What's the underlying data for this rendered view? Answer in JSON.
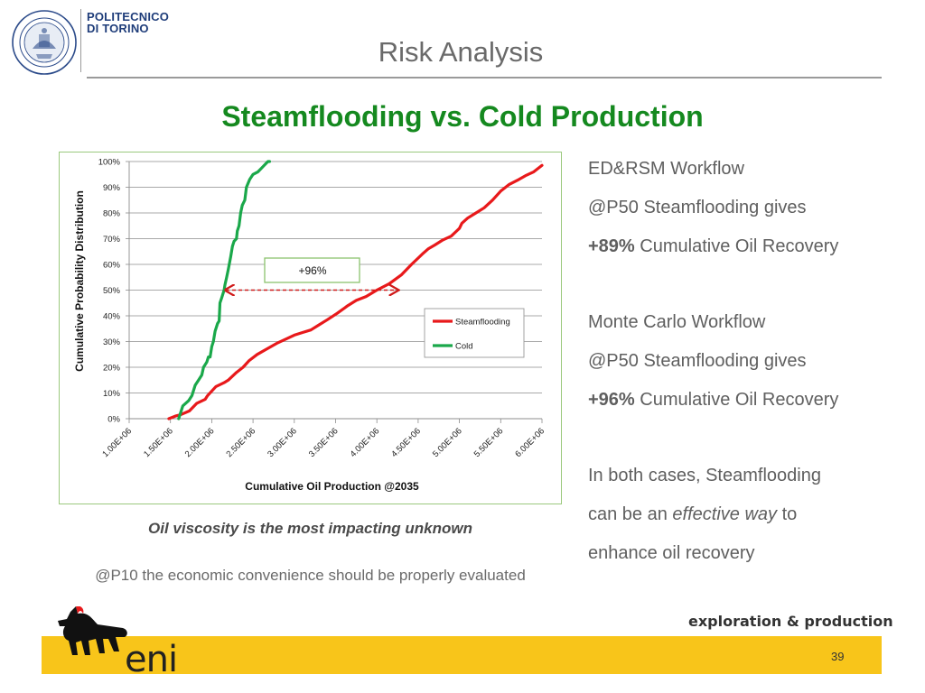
{
  "header": {
    "brand_line1": "POLITECNICO",
    "brand_line2": "DI TORINO",
    "title": "Risk Analysis",
    "seal_text": "POLITECNICO DI TORINO",
    "seal_year_left": "1859",
    "seal_year_right": "1906"
  },
  "subtitle": "Steamflooding vs. Cold Production",
  "chart_data": {
    "type": "line",
    "xlabel": "Cumulative Oil Production @2035",
    "ylabel": "Cumulative Probability Distribution",
    "xlim": [
      1000000,
      6000000
    ],
    "ylim": [
      0,
      1
    ],
    "x_ticks": [
      "1.00E+06",
      "1.50E+06",
      "2.00E+06",
      "2.50E+06",
      "3.00E+06",
      "3.50E+06",
      "4.00E+06",
      "4.50E+06",
      "5.00E+06",
      "5.50E+06",
      "6.00E+06"
    ],
    "y_ticks": [
      "0%",
      "10%",
      "20%",
      "30%",
      "40%",
      "50%",
      "60%",
      "70%",
      "80%",
      "90%",
      "100%"
    ],
    "grid": true,
    "legend_position": "right",
    "annotation": "+96%",
    "series": [
      {
        "name": "Steamflooding",
        "color": "#e8191b",
        "x": [
          1480000,
          1560000,
          1620000,
          1730000,
          1820000,
          1920000,
          1950000,
          2050000,
          2150000,
          2200000,
          2300000,
          2380000,
          2450000,
          2550000,
          2660000,
          2800000,
          2900000,
          3000000,
          3100000,
          3200000,
          3300000,
          3400000,
          3520000,
          3650000,
          3750000,
          3870000,
          4000000,
          4150000,
          4300000,
          4420000,
          4550000,
          4620000,
          4700000,
          4800000,
          4900000,
          5000000,
          5030000,
          5100000,
          5200000,
          5300000,
          5400000,
          5500000,
          5600000,
          5720000,
          5800000,
          5900000,
          6000000
        ],
        "y": [
          0.0,
          0.01,
          0.015,
          0.03,
          0.06,
          0.075,
          0.09,
          0.125,
          0.14,
          0.15,
          0.18,
          0.2,
          0.225,
          0.25,
          0.27,
          0.295,
          0.31,
          0.325,
          0.335,
          0.345,
          0.365,
          0.385,
          0.41,
          0.44,
          0.46,
          0.475,
          0.5,
          0.525,
          0.56,
          0.6,
          0.64,
          0.66,
          0.675,
          0.695,
          0.71,
          0.74,
          0.76,
          0.78,
          0.8,
          0.82,
          0.85,
          0.885,
          0.91,
          0.93,
          0.945,
          0.96,
          0.985
        ]
      },
      {
        "name": "Cold",
        "color": "#1aa84a",
        "x": [
          1600000,
          1650000,
          1720000,
          1760000,
          1800000,
          1840000,
          1880000,
          1900000,
          1940000,
          1960000,
          1980000,
          2000000,
          2020000,
          2040000,
          2070000,
          2090000,
          2100000,
          2120000,
          2150000,
          2160000,
          2180000,
          2200000,
          2230000,
          2250000,
          2270000,
          2300000,
          2310000,
          2330000,
          2350000,
          2370000,
          2400000,
          2420000,
          2460000,
          2500000,
          2560000,
          2620000,
          2650000,
          2680000,
          2700000
        ],
        "y": [
          0.0,
          0.05,
          0.07,
          0.09,
          0.13,
          0.15,
          0.17,
          0.2,
          0.22,
          0.24,
          0.24,
          0.28,
          0.3,
          0.34,
          0.37,
          0.38,
          0.45,
          0.47,
          0.5,
          0.52,
          0.55,
          0.58,
          0.63,
          0.67,
          0.69,
          0.7,
          0.73,
          0.75,
          0.8,
          0.83,
          0.85,
          0.9,
          0.93,
          0.95,
          0.96,
          0.98,
          0.99,
          1.0,
          1.0
        ]
      }
    ]
  },
  "captions": {
    "main": "Oil viscosity is the most impacting unknown",
    "secondary": "@P10 the economic convenience should be properly evaluated"
  },
  "side": {
    "ed_title": "ED&RSM Workflow",
    "ed_line": "@P50 Steamflooding gives",
    "ed_bold": "+89%",
    "ed_rest": "Cumulative Oil Recovery",
    "mc_title": "Monte Carlo Workflow",
    "mc_line": "@P50 Steamflooding gives",
    "mc_bold": "+96%",
    "mc_rest": "Cumulative Oil Recovery",
    "both_1": "In both cases, Steamflooding",
    "both_2a": "can be an",
    "both_2_em": "effective way",
    "both_2b": "to",
    "both_3": "enhance oil recovery"
  },
  "footer": {
    "division": "exploration & production",
    "company": "eni",
    "page": "39",
    "band_color": "#f8c51a"
  }
}
